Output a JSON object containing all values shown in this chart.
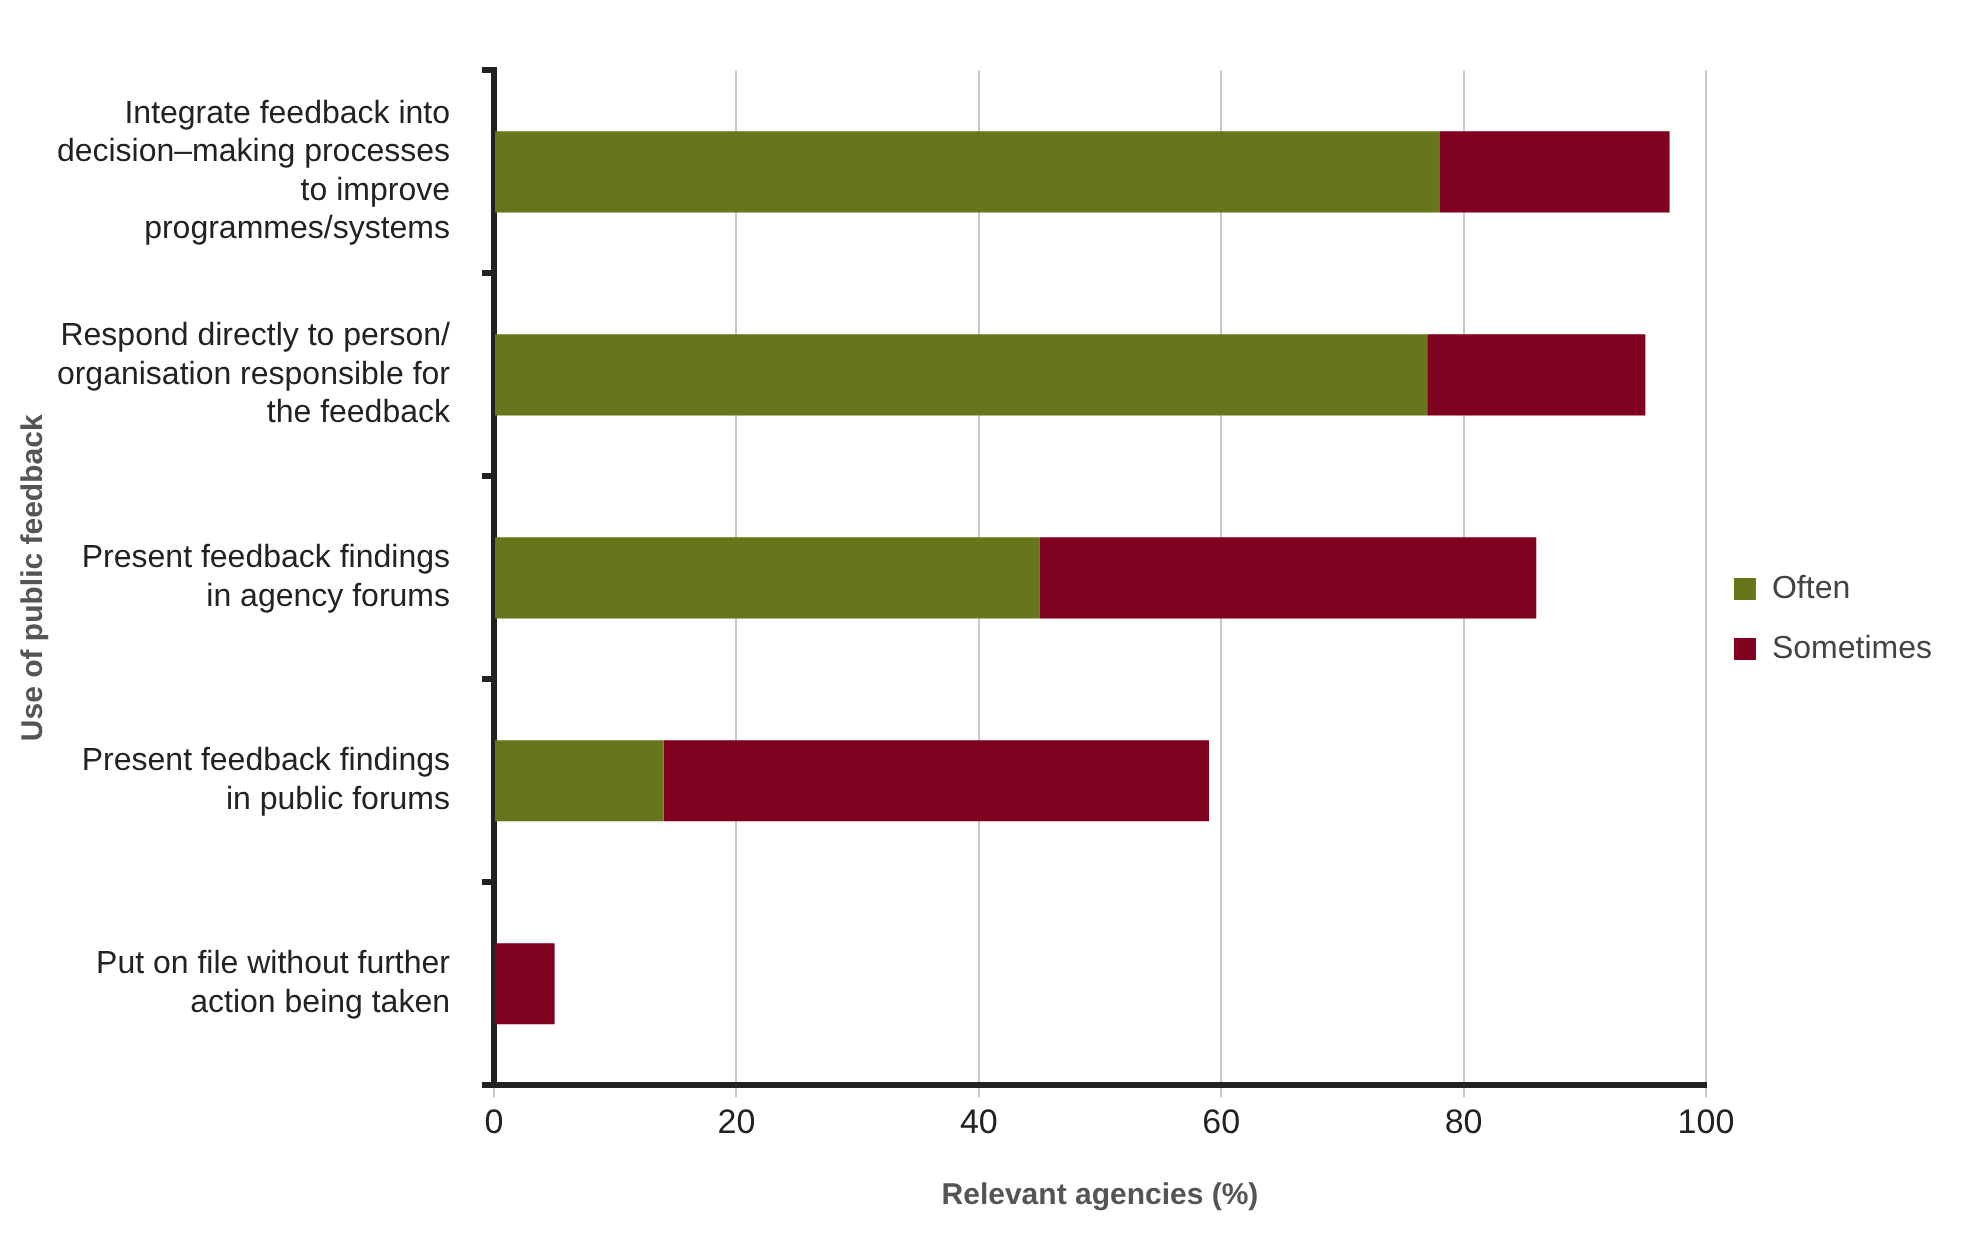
{
  "chart_data": {
    "type": "bar",
    "orientation": "horizontal",
    "stacked": true,
    "xlabel": "Relevant agencies (%)",
    "ylabel": "Use of public feedback",
    "categories": [
      "Integrate feedback into decision–making processes to improve programmes/systems",
      "Respond directly to person/ organisation responsible for the feedback",
      "Present feedback findings in agency forums",
      "Present feedback findings in public forums",
      "Put on file without further action being taken"
    ],
    "series": [
      {
        "name": "Often",
        "color": "#67761a",
        "values": [
          78,
          77,
          45,
          14,
          0
        ]
      },
      {
        "name": "Sometimes",
        "color": "#800020",
        "values": [
          19,
          18,
          41,
          45,
          5
        ]
      }
    ],
    "xlim": [
      0,
      100
    ],
    "xticks": [
      0,
      20,
      40,
      60,
      80,
      100
    ],
    "grid": "x",
    "legend": "right"
  }
}
